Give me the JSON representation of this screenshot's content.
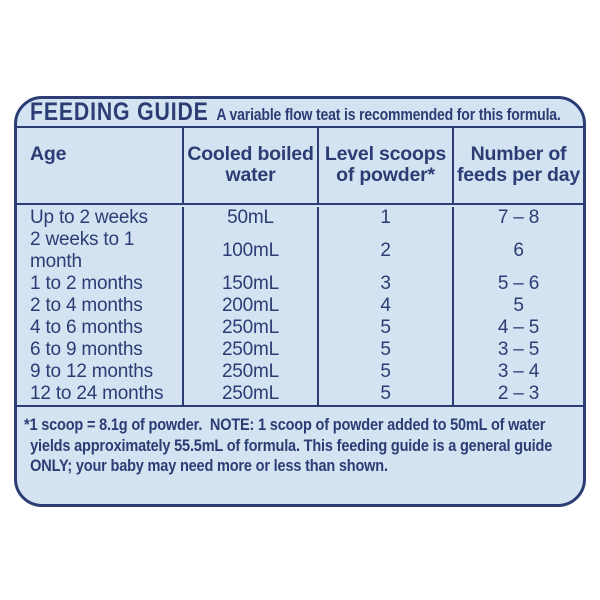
{
  "colors": {
    "navy": "#2b3d74",
    "card_background": "#d3e3f1",
    "page_background": "#ffffff"
  },
  "header": {
    "title": "FEEDING GUIDE",
    "subtitle": "A variable flow teat is recommended for this formula."
  },
  "table": {
    "columns": [
      {
        "id": "age",
        "lines": [
          "Age",
          ""
        ]
      },
      {
        "id": "water",
        "lines": [
          "Cooled boiled",
          "water"
        ]
      },
      {
        "id": "scoops",
        "lines": [
          "Level scoops",
          "of powder*"
        ]
      },
      {
        "id": "feeds",
        "lines": [
          "Number of",
          "feeds per day"
        ]
      }
    ],
    "rows": [
      {
        "age": "Up to 2 weeks",
        "water": "50mL",
        "scoops": "1",
        "feeds": "7 – 8"
      },
      {
        "age": "2 weeks to 1 month",
        "water": "100mL",
        "scoops": "2",
        "feeds": "6"
      },
      {
        "age": "1 to 2 months",
        "water": "150mL",
        "scoops": "3",
        "feeds": "5 – 6"
      },
      {
        "age": "2 to 4 months",
        "water": "200mL",
        "scoops": "4",
        "feeds": "5"
      },
      {
        "age": "4 to 6 months",
        "water": "250mL",
        "scoops": "5",
        "feeds": "4 – 5"
      },
      {
        "age": "6 to 9 months",
        "water": "250mL",
        "scoops": "5",
        "feeds": "3 – 5"
      },
      {
        "age": "9 to 12 months",
        "water": "250mL",
        "scoops": "5",
        "feeds": "3 – 4"
      },
      {
        "age": "12 to 24 months",
        "water": "250mL",
        "scoops": "5",
        "feeds": "2 – 3"
      }
    ]
  },
  "footnote": {
    "lines": [
      "*1 scoop = 8.1g of powder.  NOTE: 1 scoop of powder added to 50mL of water",
      "yields approximately 55.5mL of formula. This feeding guide is a general guide",
      "ONLY; your baby may need more or less than shown."
    ]
  }
}
